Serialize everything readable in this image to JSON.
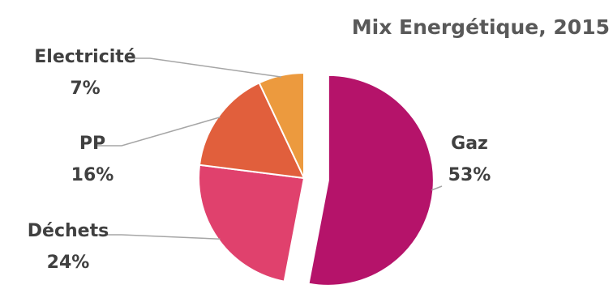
{
  "chart_data": {
    "type": "pie",
    "title": "Mix Energétique, 2015",
    "slices": [
      {
        "category": "Gaz",
        "percent_label": "53%",
        "value": 53,
        "color": "#b5136a",
        "exploded": true
      },
      {
        "category": "Déchets",
        "percent_label": "24%",
        "value": 24,
        "color": "#e0416d"
      },
      {
        "category": "PP",
        "percent_label": "16%",
        "value": 16,
        "color": "#e15f3c"
      },
      {
        "category": "Electricité",
        "percent_label": "7%",
        "value": 7,
        "color": "#ec9a3e"
      }
    ],
    "start_angle": "12 o'clock, clockwise",
    "legend": "none"
  }
}
